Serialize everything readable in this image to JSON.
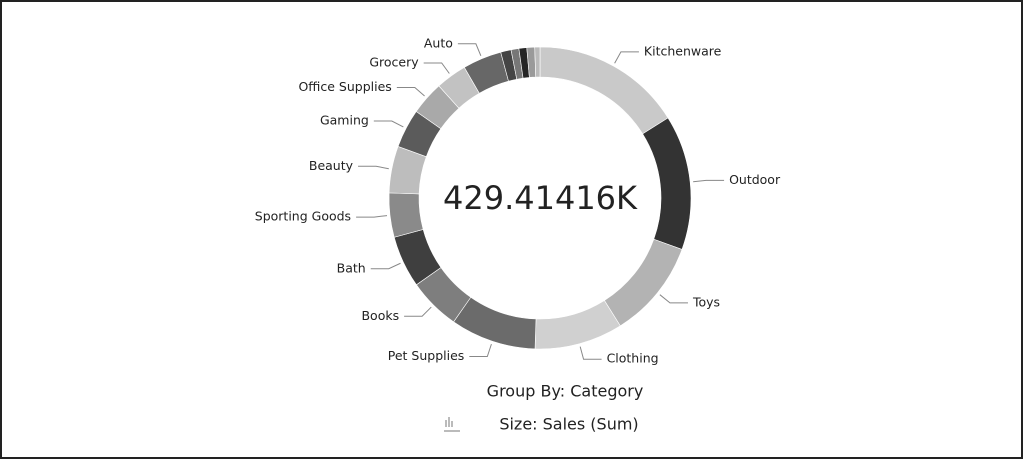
{
  "chart_data": {
    "type": "donut",
    "center_label": "429.41416K",
    "categories": [
      "Kitchenware",
      "Outdoor",
      "Toys",
      "Clothing",
      "Pet Supplies",
      "Books",
      "Bath",
      "Sporting Goods",
      "Beauty",
      "Gaming",
      "Office Supplies",
      "Grocery",
      "Auto",
      null,
      null,
      null,
      null,
      null
    ],
    "values": [
      69.2,
      62.0,
      45.3,
      40.6,
      39.4,
      23.9,
      23.9,
      20.3,
      21.5,
      17.9,
      15.5,
      14.3,
      17.9,
      4.8,
      3.6,
      3.6,
      3.6,
      2.4
    ],
    "colors": [
      "#c9c9c9",
      "#333333",
      "#b3b3b3",
      "#d0d0d0",
      "#6b6b6b",
      "#7e7e7e",
      "#3f3f3f",
      "#8a8a8a",
      "#bdbdbd",
      "#5b5b5b",
      "#a9a9a9",
      "#c2c2c2",
      "#676767",
      "#454545",
      "#777777",
      "#252525",
      "#9a9a9a",
      "#bbbbbb"
    ],
    "group_by": "Group By: Category",
    "size_label": "Size: Sales (Sum)"
  }
}
